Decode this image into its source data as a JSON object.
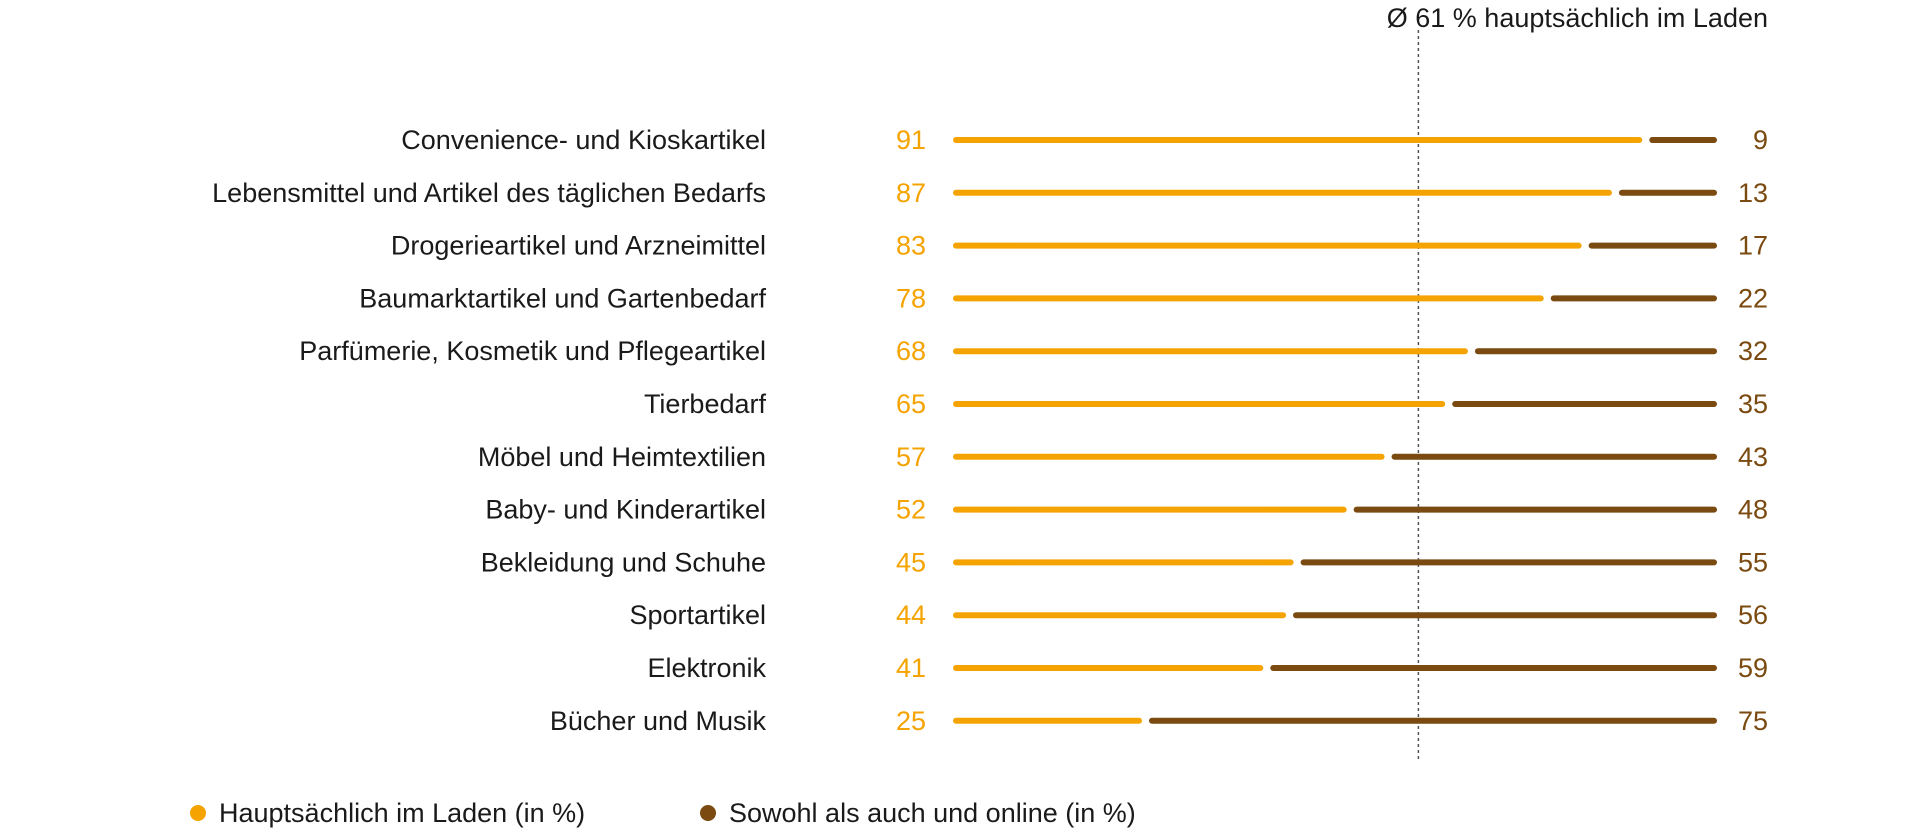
{
  "chart_data": {
    "type": "bar",
    "stacked": true,
    "orientation": "horizontal",
    "categories": [
      "Convenience- und Kioskartikel",
      "Lebensmittel und Artikel des täglichen Bedarfs",
      "Drogerieartikel und Arzneimittel",
      "Baumarktartikel und Gartenbedarf",
      "Parfümerie, Kosmetik und Pflegeartikel",
      "Tierbedarf",
      "Möbel und Heimtextilien",
      "Baby- und Kinderartikel",
      "Bekleidung und Schuhe",
      "Sportartikel",
      "Elektronik",
      "Bücher und Musik"
    ],
    "series": [
      {
        "name": "Hauptsächlich im Laden (in %)",
        "color": "#f5a300",
        "values": [
          91,
          87,
          83,
          78,
          68,
          65,
          57,
          52,
          45,
          44,
          41,
          25
        ]
      },
      {
        "name": "Sowohl als auch und online (in %)",
        "color": "#7a4a10",
        "values": [
          9,
          13,
          17,
          22,
          32,
          35,
          43,
          48,
          55,
          56,
          59,
          75
        ]
      }
    ],
    "xlim": [
      0,
      100
    ],
    "reference_line": {
      "value": 61,
      "label": "Ø 61 % hauptsächlich im Laden"
    },
    "grid": false,
    "legend_position": "bottom-left"
  }
}
